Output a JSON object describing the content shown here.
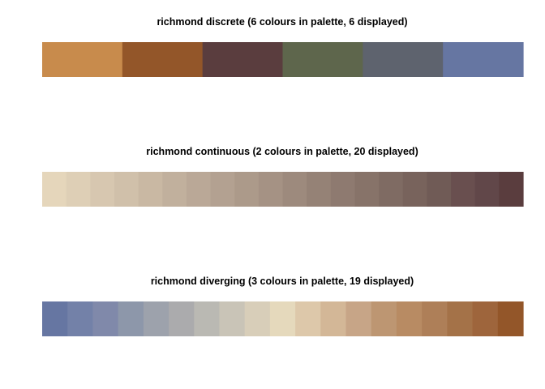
{
  "chart_data": [
    {
      "type": "heatmap",
      "title": "richmond discrete (6 colours in palette, 6 displayed)",
      "palette_name": "richmond",
      "palette_kind": "discrete",
      "colours_in_palette": 6,
      "colours_displayed": 6,
      "colors": [
        "#C88B4C",
        "#935629",
        "#5A3D3E",
        "#5E664C",
        "#5E636E",
        "#6676A2"
      ]
    },
    {
      "type": "heatmap",
      "title": "richmond continuous (2 colours in palette, 20 displayed)",
      "palette_name": "richmond",
      "palette_kind": "continuous",
      "colours_in_palette": 2,
      "colours_displayed": 20,
      "colors": [
        "#E5D6BB",
        "#DECFB6",
        "#D7C7B0",
        "#D0C0AA",
        "#C9B8A3",
        "#C1B09D",
        "#BAA897",
        "#B3A191",
        "#AC9A8A",
        "#A59284",
        "#9D8A7D",
        "#958276",
        "#8E7A70",
        "#877369",
        "#7F6B63",
        "#78635C",
        "#705B56",
        "#694F4F",
        "#614749",
        "#5A3D3E"
      ]
    },
    {
      "type": "heatmap",
      "title": "richmond diverging (3 colours in palette, 19 displayed)",
      "palette_name": "richmond",
      "palette_kind": "diverging",
      "colours_in_palette": 3,
      "colours_displayed": 19,
      "colors": [
        "#6676A2",
        "#7381A8",
        "#8089AA",
        "#8D97AA",
        "#9DA2AC",
        "#ABABAD",
        "#BAB9B3",
        "#C9C4B7",
        "#D8CEB9",
        "#E5D9BC",
        "#DDC8AA",
        "#D3B797",
        "#C7A587",
        "#BD9672",
        "#B88B63",
        "#AE7F58",
        "#A47248",
        "#9E653C",
        "#935629"
      ]
    }
  ]
}
